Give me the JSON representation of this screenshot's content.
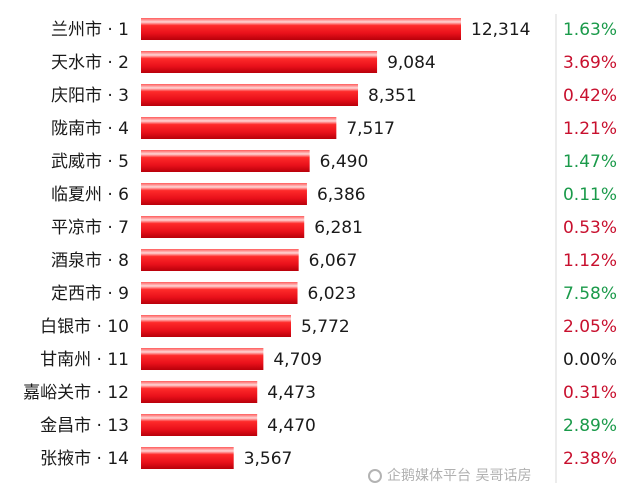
{
  "chart_data": {
    "type": "bar",
    "orientation": "horizontal",
    "categories": [
      "兰州市 · 1",
      "天水市 · 2",
      "庆阳市 · 3",
      "陇南市 · 4",
      "武威市 · 5",
      "临夏州 · 6",
      "平凉市 · 7",
      "酒泉市 · 8",
      "定西市 · 9",
      "白银市 · 10",
      "甘南州 · 11",
      "嘉峪关市 · 12",
      "金昌市 · 13",
      "张掖市 · 14"
    ],
    "values": [
      12314,
      9084,
      8351,
      7517,
      6490,
      6386,
      6281,
      6067,
      6023,
      5772,
      4709,
      4473,
      4470,
      3567
    ],
    "value_labels": [
      "12,314",
      "9,084",
      "8,351",
      "7,517",
      "6,490",
      "6,386",
      "6,281",
      "6,067",
      "6,023",
      "5,772",
      "4,709",
      "4,473",
      "4,470",
      "3,567"
    ],
    "percent_labels": [
      "1.63%",
      "3.69%",
      "0.42%",
      "1.21%",
      "1.47%",
      "0.11%",
      "0.53%",
      "1.12%",
      "7.58%",
      "2.05%",
      "0.00%",
      "0.31%",
      "2.89%",
      "2.38%"
    ],
    "percent_colors": [
      "#1a9a4a",
      "#c8102e",
      "#c8102e",
      "#c8102e",
      "#1a9a4a",
      "#1a9a4a",
      "#c8102e",
      "#c8102e",
      "#1a9a4a",
      "#c8102e",
      "#1a1a1a",
      "#c8102e",
      "#1a9a4a",
      "#c8102e"
    ],
    "bar_color": "#e8101a",
    "grid": false,
    "xlim": [
      0,
      12314
    ]
  },
  "watermark": {
    "text": "企鹅媒体平台 吴哥话房",
    "icon": "penguin-icon"
  }
}
